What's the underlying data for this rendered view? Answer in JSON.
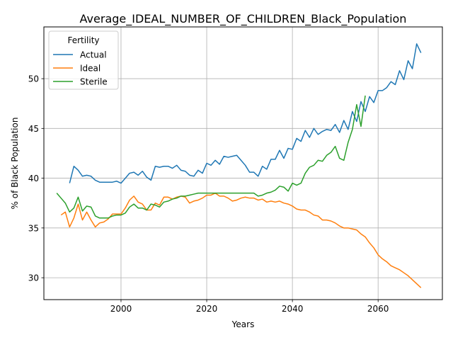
{
  "chart_data": {
    "type": "line",
    "title": "Average_IDEAL_NUMBER_OF_CHILDREN_Black_Population",
    "xlabel": "Years",
    "ylabel": "% of Black Population",
    "xlim": [
      1982,
      2075
    ],
    "ylim": [
      27.8,
      55.2
    ],
    "xticks": [
      2000,
      2020,
      2040,
      2060
    ],
    "yticks": [
      30,
      35,
      40,
      45,
      50
    ],
    "grid": true,
    "legend": {
      "title": "Fertility",
      "placement": "top-left"
    },
    "series": [
      {
        "name": "Actual",
        "color": "#1f77b4",
        "x": [
          1988,
          1989,
          1990,
          1991,
          1992,
          1993,
          1994,
          1995,
          1996,
          1997,
          1998,
          1999,
          2000,
          2001,
          2002,
          2003,
          2004,
          2005,
          2006,
          2007,
          2008,
          2009,
          2010,
          2011,
          2012,
          2013,
          2014,
          2015,
          2016,
          2017,
          2018,
          2019,
          2020,
          2021,
          2022,
          2023,
          2024,
          2025,
          2026,
          2027,
          2028,
          2029,
          2030,
          2031,
          2032,
          2033,
          2034,
          2035,
          2036,
          2037,
          2038,
          2039,
          2040,
          2041,
          2042,
          2043,
          2044,
          2045,
          2046,
          2047,
          2048,
          2049,
          2050,
          2051,
          2052,
          2053,
          2054,
          2055,
          2056,
          2057,
          2058,
          2059,
          2060,
          2061,
          2062,
          2063,
          2064,
          2065,
          2066,
          2067,
          2068,
          2069,
          2070
        ],
        "values": [
          39.5,
          41.2,
          40.8,
          40.2,
          40.3,
          40.2,
          39.8,
          39.6,
          39.6,
          39.6,
          39.6,
          39.7,
          39.5,
          40.0,
          40.5,
          40.6,
          40.3,
          40.7,
          40.1,
          39.8,
          41.2,
          41.1,
          41.2,
          41.2,
          41.0,
          41.3,
          40.8,
          40.7,
          40.3,
          40.2,
          40.8,
          40.5,
          41.5,
          41.3,
          41.8,
          41.4,
          42.2,
          42.1,
          42.2,
          42.3,
          41.8,
          41.3,
          40.6,
          40.6,
          40.2,
          41.2,
          40.9,
          41.9,
          41.9,
          42.8,
          42.0,
          43.0,
          42.9,
          44.0,
          43.7,
          44.8,
          44.1,
          45.0,
          44.4,
          44.7,
          44.9,
          44.8,
          45.4,
          44.6,
          45.8,
          44.9,
          46.7,
          45.7,
          47.7,
          46.7,
          48.2,
          47.6,
          48.8,
          48.8,
          49.1,
          49.7,
          49.4,
          50.8,
          49.9,
          51.8,
          51.0,
          53.5,
          52.6
        ]
      },
      {
        "name": "Ideal",
        "color": "#ff7f0e",
        "x": [
          1986,
          1987,
          1988,
          1989,
          1990,
          1991,
          1992,
          1993,
          1994,
          1995,
          1996,
          1997,
          1998,
          1999,
          2000,
          2001,
          2002,
          2003,
          2004,
          2005,
          2006,
          2007,
          2008,
          2009,
          2010,
          2011,
          2012,
          2013,
          2014,
          2015,
          2016,
          2017,
          2018,
          2019,
          2020,
          2021,
          2022,
          2023,
          2024,
          2025,
          2026,
          2027,
          2028,
          2029,
          2030,
          2031,
          2032,
          2033,
          2034,
          2035,
          2036,
          2037,
          2038,
          2039,
          2040,
          2041,
          2042,
          2043,
          2044,
          2045,
          2046,
          2047,
          2048,
          2049,
          2050,
          2051,
          2052,
          2053,
          2054,
          2055,
          2056,
          2057,
          2058,
          2059,
          2060,
          2061,
          2062,
          2063,
          2064,
          2065,
          2066,
          2067,
          2068,
          2069,
          2070
        ],
        "values": [
          36.3,
          36.6,
          35.1,
          36.0,
          37.4,
          35.8,
          36.6,
          35.8,
          35.1,
          35.5,
          35.6,
          35.9,
          36.4,
          36.4,
          36.4,
          37.0,
          37.8,
          38.2,
          37.6,
          37.4,
          36.8,
          36.8,
          37.5,
          37.3,
          38.1,
          38.1,
          37.9,
          38.1,
          38.2,
          38.1,
          37.5,
          37.7,
          37.8,
          38.0,
          38.3,
          38.3,
          38.5,
          38.2,
          38.2,
          38.0,
          37.7,
          37.8,
          38.0,
          38.1,
          38.0,
          38.0,
          37.8,
          37.9,
          37.6,
          37.7,
          37.6,
          37.7,
          37.5,
          37.4,
          37.2,
          36.9,
          36.8,
          36.8,
          36.6,
          36.3,
          36.2,
          35.8,
          35.8,
          35.7,
          35.5,
          35.2,
          35.0,
          35.0,
          34.9,
          34.8,
          34.4,
          34.1,
          33.5,
          33.0,
          32.3,
          31.9,
          31.6,
          31.2,
          31.0,
          30.8,
          30.5,
          30.2,
          29.8,
          29.4,
          29.0
        ]
      },
      {
        "name": "Sterile",
        "color": "#2ca02c",
        "x": [
          1985,
          1986,
          1987,
          1988,
          1989,
          1990,
          1991,
          1992,
          1993,
          1994,
          1995,
          1996,
          1997,
          1998,
          1999,
          2000,
          2001,
          2002,
          2003,
          2004,
          2005,
          2006,
          2007,
          2008,
          2009,
          2010,
          2011,
          2012,
          2013,
          2014,
          2015,
          2016,
          2017,
          2018,
          2019,
          2020,
          2021,
          2022,
          2023,
          2024,
          2025,
          2026,
          2027,
          2028,
          2029,
          2030,
          2031,
          2032,
          2033,
          2034,
          2035,
          2036,
          2037,
          2038,
          2039,
          2040,
          2041,
          2042,
          2043,
          2044,
          2045,
          2046,
          2047,
          2048,
          2049,
          2050,
          2051,
          2052,
          2053,
          2054,
          2055,
          2056,
          2057
        ],
        "values": [
          38.5,
          38.0,
          37.5,
          36.6,
          37.0,
          38.1,
          36.7,
          37.2,
          37.1,
          36.2,
          36.0,
          36.0,
          36.0,
          36.2,
          36.3,
          36.3,
          36.5,
          37.1,
          37.4,
          37.0,
          37.0,
          36.8,
          37.4,
          37.3,
          37.1,
          37.6,
          37.7,
          37.9,
          38.0,
          38.2,
          38.2,
          38.3,
          38.4,
          38.5,
          38.5,
          38.5,
          38.5,
          38.5,
          38.5,
          38.5,
          38.5,
          38.5,
          38.5,
          38.5,
          38.5,
          38.5,
          38.5,
          38.2,
          38.3,
          38.5,
          38.6,
          38.8,
          39.2,
          39.1,
          38.7,
          39.5,
          39.3,
          39.5,
          40.5,
          41.1,
          41.3,
          41.8,
          41.7,
          42.3,
          42.6,
          43.2,
          42.0,
          41.8,
          43.6,
          44.9,
          47.4,
          45.2,
          48.3
        ]
      }
    ]
  }
}
